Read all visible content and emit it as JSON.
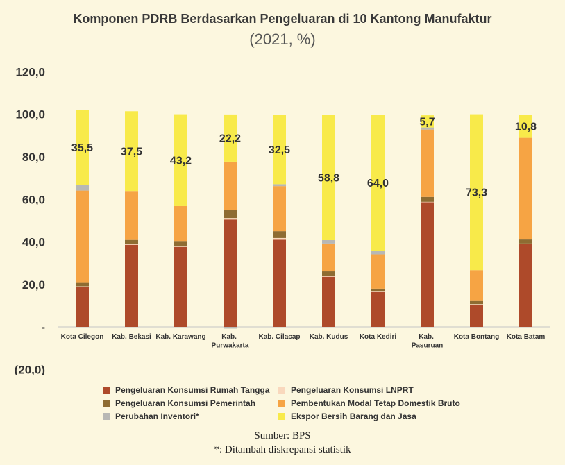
{
  "chart_data": {
    "type": "bar",
    "stacked": true,
    "title": "Komponen PDRB Berdasarkan Pengeluaran di 10 Kantong Manufaktur",
    "subtitle": "(2021, %)",
    "xlabel": "",
    "ylabel": "",
    "ylim": [
      -20,
      120
    ],
    "grid": false,
    "legend": "bottom",
    "yticks": [
      120,
      100,
      80,
      60,
      40,
      20,
      0,
      -20
    ],
    "ytick_labels": [
      "120,0",
      "100,0",
      "80,0",
      "60,0",
      "40,0",
      "20,0",
      "-",
      "(20,0)"
    ],
    "categories": [
      "Kota Cilegon",
      "Kab. Bekasi",
      "Kab. Karawang",
      "Kab. Purwakarta",
      "Kab. Cilacap",
      "Kab. Kudus",
      "Kota Kediri",
      "Kab. Pasuruan",
      "Kota Bontang",
      "Kota Batam"
    ],
    "series": [
      {
        "name": "Pengeluaran Konsumsi Rumah Tangga",
        "color": "#ae4a2a",
        "values": [
          18.9,
          38.6,
          37.6,
          50.5,
          41.0,
          23.6,
          16.4,
          58.6,
          10.2,
          39.0
        ]
      },
      {
        "name": "Pengeluaran Konsumsi LNPRT",
        "color": "#f9d8bd",
        "values": [
          0.2,
          0.4,
          0.2,
          0.7,
          0.8,
          0.5,
          0.2,
          0.2,
          0.5,
          0.2
        ]
      },
      {
        "name": "Pengeluaran Konsumsi Pemerintah",
        "color": "#8e6c32",
        "values": [
          1.6,
          1.9,
          2.6,
          3.8,
          3.2,
          2.0,
          1.4,
          2.3,
          1.8,
          1.9
        ]
      },
      {
        "name": "Pembentukan Modal Tetap Domestik Bruto",
        "color": "#f6a444",
        "values": [
          43.4,
          23.0,
          16.4,
          22.7,
          21.2,
          13.1,
          16.1,
          31.7,
          14.2,
          47.8
        ]
      },
      {
        "name": "Perubahan Inventori*",
        "color": "#b8b8b5",
        "values": [
          2.5,
          0.0,
          0.0,
          -0.8,
          0.9,
          1.6,
          1.7,
          1.0,
          0.0,
          0.0
        ]
      },
      {
        "name": "Ekspor Bersih Barang dan Jasa",
        "color": "#f8ea4a",
        "values": [
          35.5,
          37.5,
          43.2,
          22.2,
          32.5,
          58.8,
          64.0,
          5.7,
          73.3,
          10.8
        ]
      }
    ],
    "data_labels": {
      "series_index": 5,
      "values": [
        "35,5",
        "37,5",
        "43,2",
        "22,2",
        "32,5",
        "58,8",
        "64,0",
        "5,7",
        "73,3",
        "10,8"
      ]
    }
  },
  "source": "Sumber: BPS",
  "note": "*: Ditambah diskrepansi statistik"
}
